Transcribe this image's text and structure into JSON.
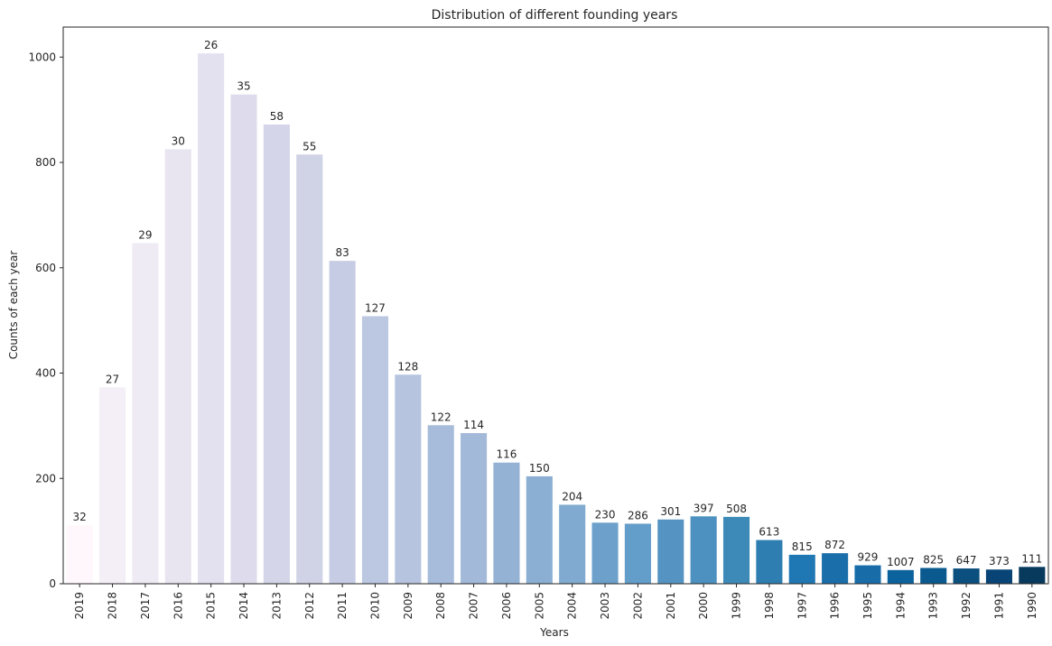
{
  "chart_data": {
    "type": "bar",
    "title": "Distribution of different  founding years",
    "xlabel": "Years",
    "ylabel": "Counts of each year",
    "categories": [
      "2019",
      "2018",
      "2017",
      "2016",
      "2015",
      "2014",
      "2013",
      "2012",
      "2011",
      "2010",
      "2009",
      "2008",
      "2007",
      "2006",
      "2005",
      "2004",
      "2003",
      "2002",
      "2001",
      "2000",
      "1999",
      "1998",
      "1997",
      "1996",
      "1995",
      "1994",
      "1993",
      "1992",
      "1991",
      "1990"
    ],
    "values": [
      111,
      373,
      647,
      825,
      1007,
      929,
      872,
      815,
      613,
      508,
      397,
      301,
      286,
      230,
      204,
      150,
      116,
      114,
      122,
      128,
      127,
      83,
      55,
      58,
      35,
      26,
      30,
      29,
      27,
      32
    ],
    "bar_labels": [
      "32",
      "27",
      "29",
      "30",
      "26",
      "35",
      "58",
      "55",
      "83",
      "127",
      "128",
      "122",
      "114",
      "116",
      "150",
      "204",
      "230",
      "286",
      "301",
      "397",
      "508",
      "613",
      "815",
      "872",
      "929",
      "1007",
      "825",
      "647",
      "373",
      "111"
    ],
    "yticks": [
      0,
      200,
      400,
      600,
      800,
      1000
    ],
    "ylim": [
      0,
      1057
    ],
    "grid": false,
    "legend": "none",
    "colors": [
      "#fff7fb",
      "#f4eff6",
      "#efebf4",
      "#e8e5f1",
      "#e3e1ef",
      "#dedcec",
      "#d4d5e8",
      "#d0d2e6",
      "#c6cce3",
      "#bcc7e1",
      "#b6c4df",
      "#a7bcda",
      "#a2b9d9",
      "#94b2d4",
      "#8bafd2",
      "#81aad0",
      "#6da1cb",
      "#639dc9",
      "#5594c2",
      "#4d91c1",
      "#3d8ab9",
      "#2e7eb1",
      "#1f78b4",
      "#1a6faa",
      "#186da9",
      "#0c629d",
      "#0a5a8f",
      "#0a4f7d",
      "#084475",
      "#083a5e"
    ]
  }
}
